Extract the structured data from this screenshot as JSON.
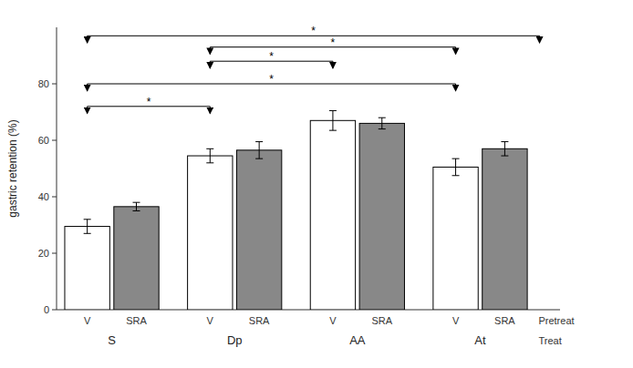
{
  "chart_data": {
    "type": "bar",
    "categories": [
      "V",
      "SRA",
      "V",
      "SRA",
      "V",
      "SRA",
      "V",
      "SRA"
    ],
    "groups": [
      "S",
      "Dp",
      "AA",
      "At"
    ],
    "x_row_labels": [
      "Pretreat",
      "Treat"
    ],
    "values": [
      29.5,
      36.5,
      54.5,
      56.5,
      67.0,
      66.0,
      50.5,
      57.0
    ],
    "errors": [
      2.5,
      1.5,
      2.5,
      3.0,
      3.5,
      2.0,
      3.0,
      2.5
    ],
    "colors": [
      "white",
      "#888888",
      "white",
      "#888888",
      "white",
      "#888888",
      "white",
      "#888888"
    ],
    "y_label": "gastric retention (%)",
    "ylim": [
      0,
      100
    ],
    "yticks": [
      0,
      20,
      40,
      60,
      80
    ],
    "grid": false,
    "brackets": [
      {
        "from": 0,
        "to": 2,
        "y": 72,
        "label": "*"
      },
      {
        "from": 0,
        "to": 6,
        "y": 80,
        "label": "*"
      },
      {
        "from": 2,
        "to": 4,
        "y": 88,
        "label": "*"
      },
      {
        "from": 2,
        "to": 6,
        "y": 93,
        "label": "*"
      },
      {
        "from": 0,
        "to": 8,
        "y": 97,
        "label": "*"
      }
    ]
  }
}
